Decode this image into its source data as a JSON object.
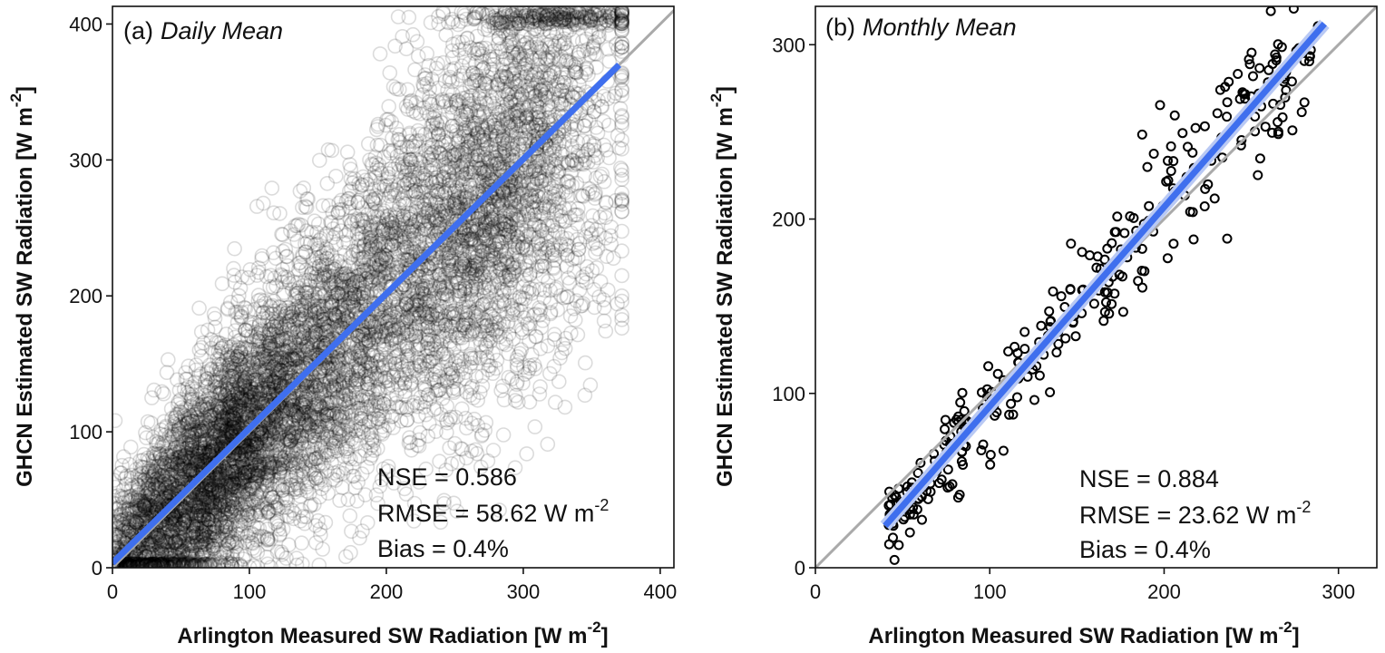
{
  "chart_data": [
    {
      "type": "scatter",
      "panel_label": "(a)",
      "title": "Daily Mean",
      "xlabel": "Arlington Measured SW Radiation [W m",
      "xlabel_sup": "-2",
      "xlabel_end": "]",
      "ylabel": "GHCN Estimated SW Radiation [W m",
      "ylabel_sup": "-2",
      "ylabel_end": "]",
      "xlim": [
        0,
        410
      ],
      "ylim": [
        0,
        413
      ],
      "xticks": [
        0,
        100,
        200,
        300,
        400
      ],
      "yticks": [
        0,
        100,
        200,
        300,
        400
      ],
      "one_to_one_line": true,
      "fit_line": {
        "x": [
          0,
          370
        ],
        "y": [
          3.5,
          370
        ]
      },
      "point_style": "open circles, semi-transparent",
      "approx_point_count": 9000,
      "stats": {
        "nse": "NSE = 0.586",
        "rmse": "RMSE = 58.62 W m",
        "rmse_sup": "-2",
        "bias": "Bias = 0.4%"
      },
      "grid": false,
      "colors": {
        "points": "#000000",
        "fit": "#3f6fee",
        "one_to_one": "#aaaaaa"
      }
    },
    {
      "type": "scatter",
      "panel_label": "(b)",
      "title": "Monthly Mean",
      "xlabel": "Arlington Measured SW Radiation [W m",
      "xlabel_sup": "-2",
      "xlabel_end": "]",
      "ylabel": "GHCN Estimated SW Radiation [W m",
      "ylabel_sup": "-2",
      "ylabel_end": "]",
      "xlim": [
        0,
        322
      ],
      "ylim": [
        0,
        322
      ],
      "xticks": [
        0,
        100,
        200,
        300
      ],
      "yticks": [
        0,
        100,
        200,
        300
      ],
      "one_to_one_line": true,
      "fit_line": {
        "x": [
          40,
          292
        ],
        "y": [
          24,
          312
        ]
      },
      "point_style": "open circles",
      "approx_point_count": 320,
      "stats": {
        "nse": "NSE = 0.884",
        "rmse": "RMSE = 23.62 W m",
        "rmse_sup": "-2",
        "bias": "Bias = 0.4%"
      },
      "grid": false,
      "colors": {
        "points": "#000000",
        "fit": "#3f6fee",
        "one_to_one": "#aaaaaa"
      }
    }
  ]
}
